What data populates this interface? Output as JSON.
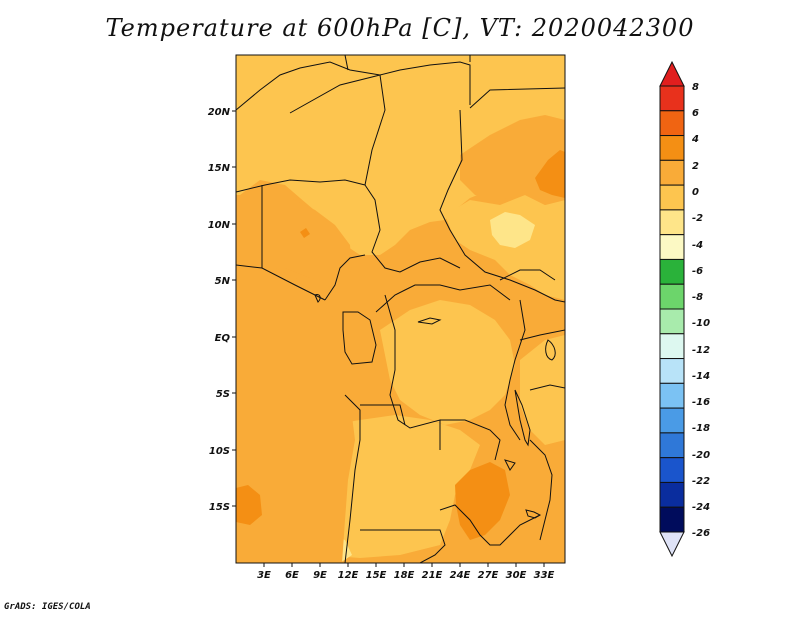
{
  "title": "Temperature at 600hPa [C], VT: 2020042300",
  "credit": "GrADS: IGES/COLA",
  "map": {
    "lon_range": [
      0,
      35
    ],
    "lat_range": [
      -20,
      24
    ],
    "lon_ticks": [
      "3E",
      "6E",
      "9E",
      "12E",
      "15E",
      "18E",
      "21E",
      "24E",
      "27E",
      "30E",
      "33E"
    ],
    "lat_ticks": [
      "20N",
      "15N",
      "10N",
      "5N",
      "EQ",
      "5S",
      "10S",
      "15S"
    ],
    "base_field": "temperature 0 to 2 C (light orange) with widespread 2 to 4 C (orange) and small 4 to 6 C patches"
  },
  "colorbar": {
    "labels": [
      "8",
      "6",
      "4",
      "2",
      "0",
      "-2",
      "-4",
      "-6",
      "-8",
      "-10",
      "-12",
      "-14",
      "-16",
      "-18",
      "-20",
      "-22",
      "-24",
      "-26"
    ],
    "colors": [
      "#e8311c",
      "#f06412",
      "#f48f14",
      "#f9ab38",
      "#fdc54f",
      "#fee589",
      "#fcf9c4",
      "#2ab23a",
      "#6cd56b",
      "#a8ebac",
      "#ddf8f0",
      "#b8e3f8",
      "#7bc2f3",
      "#4a9be6",
      "#2f78d8",
      "#1a55cc",
      "#0a2d9e",
      "#000c5c"
    ],
    "top_arrow_color": "#e01e1e",
    "bottom_arrow_color": "#dfe3f7"
  }
}
